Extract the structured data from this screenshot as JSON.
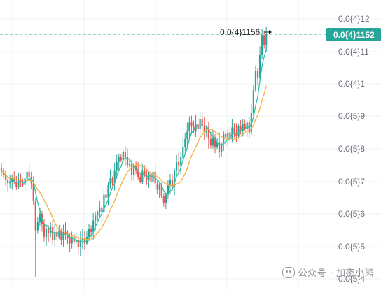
{
  "chart_data": {
    "type": "candlestick",
    "y_axis": {
      "position": "right",
      "ticks": [
        {
          "label": "0.0{4}12",
          "value": 0.00012
        },
        {
          "label": "0.0{4}11",
          "value": 0.00011
        },
        {
          "label": "0.0{4}1",
          "value": 0.0001
        },
        {
          "label": "0.0{5}9",
          "value": 9e-06
        },
        {
          "label": "0.0{5}8",
          "value": 8e-06
        },
        {
          "label": "0.0{5}7",
          "value": 7e-06
        },
        {
          "label": "0.0{5}6",
          "value": 6e-06
        },
        {
          "label": "0.0{5}5",
          "value": 5e-06
        },
        {
          "label": "0.0{5}4",
          "value": 4e-06
        }
      ],
      "grid": true
    },
    "x_axis": {
      "labels": [],
      "grid": true
    },
    "current_price": {
      "label": "0.0{4}1152",
      "color": "#26a69a",
      "line_style": "dashed"
    },
    "high_annotation": {
      "label": "0.0{4}1156"
    },
    "series": [
      {
        "kind": "candles",
        "up_color": "#26a69a",
        "down_color": "#ef5350",
        "closes": [
          7.35,
          7.2,
          7.05,
          6.95,
          7.0,
          7.1,
          7.0,
          6.85,
          7.05,
          7.0,
          6.9,
          7.1,
          7.3,
          7.15,
          6.95,
          6.4,
          5.5,
          5.75,
          6.0,
          5.7,
          5.3,
          5.55,
          5.4,
          5.6,
          5.2,
          5.45,
          5.3,
          5.5,
          5.2,
          5.45,
          5.35,
          5.25,
          5.1,
          5.3,
          5.15,
          5.2,
          5.0,
          5.2,
          5.25,
          5.1,
          5.3,
          5.55,
          5.45,
          5.8,
          5.95,
          6.05,
          6.2,
          6.05,
          6.6,
          6.5,
          6.9,
          7.1,
          6.95,
          7.35,
          7.6,
          7.75,
          7.65,
          7.9,
          7.75,
          7.5,
          7.55,
          7.2,
          7.5,
          7.35,
          7.15,
          7.0,
          7.35,
          7.2,
          7.05,
          7.25,
          7.0,
          7.3,
          6.95,
          6.75,
          6.9,
          6.55,
          6.35,
          6.6,
          6.9,
          7.05,
          6.85,
          7.35,
          7.6,
          7.5,
          7.75,
          8.05,
          8.3,
          8.55,
          8.8,
          8.7,
          8.55,
          8.75,
          8.6,
          8.9,
          8.7,
          8.5,
          8.65,
          8.3,
          8.1,
          8.35,
          8.05,
          8.2,
          7.9,
          8.15,
          8.45,
          8.35,
          8.5,
          8.3,
          8.65,
          8.5,
          8.4,
          8.7,
          8.55,
          8.75,
          8.6,
          8.8,
          8.5,
          9.1,
          9.8,
          10.4,
          10.2,
          10.9,
          11.5,
          11.2,
          11.52
        ],
        "note": "values in units of 1e-6 (0.0{5}7 = 7e-6); reading approximate"
      },
      {
        "kind": "line",
        "color": "#2cc3a3",
        "role": "fast moving average"
      },
      {
        "kind": "line",
        "color": "#f0b23a",
        "role": "slow moving average"
      }
    ]
  },
  "colors": {
    "up": "#26a69a",
    "down": "#ef5350",
    "ma_fast": "#2cc3a3",
    "ma_slow": "#f0b23a",
    "grid": "#eef0f3",
    "price_line": "#26a69a"
  },
  "watermark": {
    "text": "公众号 · 加密小熊"
  }
}
